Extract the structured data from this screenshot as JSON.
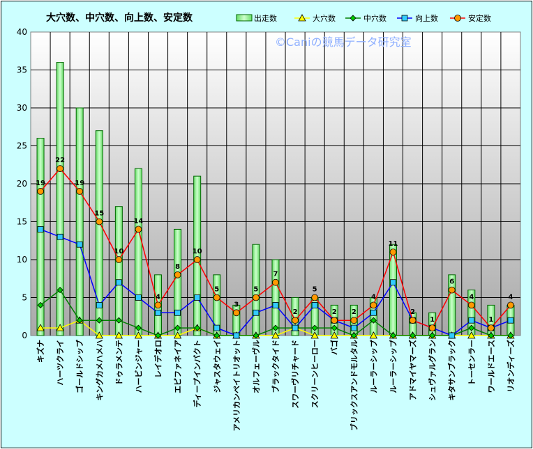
{
  "chart_data": {
    "type": "bar",
    "title": "大穴数、中穴数、向上数、安定数",
    "watermark": "©Caniの競馬データ研究室",
    "ylim": [
      0,
      40
    ],
    "yticks": [
      0,
      5,
      10,
      15,
      20,
      25,
      30,
      35,
      40
    ],
    "legend_position": "top-right",
    "grid": true,
    "categories": [
      "キズナ",
      "ハーツクライ",
      "ゴールドシップ",
      "キングカメハメハ",
      "ドゥラメンテ",
      "ハービンジャー",
      "レイデオロ",
      "エピファネイア",
      "ディープインパクト",
      "ジャスタウェイ",
      "アメリカンペイトリオット",
      "オルフェーヴル",
      "ブラックタイド",
      "スワーヴリチャード",
      "スクリーンヒーロー",
      "バゴ",
      "ブリックスアンドモルタル",
      "ルーラーシップ",
      "ルーラーシップ",
      "アドマイヤマーズ",
      "シュヴァルグラン",
      "キタサンブラック",
      "トーセンラー",
      "ワールドエース",
      "リオンディーズ"
    ],
    "series": [
      {
        "name": "出走数",
        "kind": "bar",
        "color": "#99ff99",
        "values": [
          26,
          36,
          30,
          27,
          17,
          22,
          8,
          14,
          21,
          8,
          4,
          12,
          10,
          5,
          5,
          4,
          4,
          5,
          12,
          3,
          3,
          8,
          6,
          4,
          4
        ]
      },
      {
        "name": "大穴数",
        "kind": "line",
        "color": "#ffff00",
        "values": [
          1,
          1,
          2,
          0,
          0,
          0,
          0,
          0,
          1,
          0,
          0,
          0,
          0,
          1,
          0,
          0,
          0,
          0,
          0,
          0,
          0,
          0,
          0,
          0,
          0
        ]
      },
      {
        "name": "中穴数",
        "kind": "line",
        "color": "#008000",
        "values": [
          4,
          6,
          2,
          2,
          2,
          1,
          0,
          1,
          1,
          0,
          0,
          0,
          1,
          1,
          1,
          1,
          0,
          2,
          0,
          0,
          0,
          0,
          1,
          0,
          0
        ]
      },
      {
        "name": "向上数",
        "kind": "line",
        "color": "#0000ff",
        "values": [
          14,
          13,
          12,
          4,
          7,
          5,
          3,
          3,
          5,
          1,
          0,
          3,
          4,
          1,
          4,
          2,
          1,
          3,
          7,
          2,
          1,
          0,
          2,
          1,
          2
        ]
      },
      {
        "name": "安定数",
        "kind": "line",
        "color": "#ff0000",
        "values": [
          19,
          22,
          19,
          15,
          10,
          14,
          4,
          8,
          10,
          5,
          3,
          5,
          7,
          2,
          5,
          2,
          2,
          4,
          11,
          2,
          1,
          6,
          4,
          1,
          4
        ]
      }
    ]
  }
}
